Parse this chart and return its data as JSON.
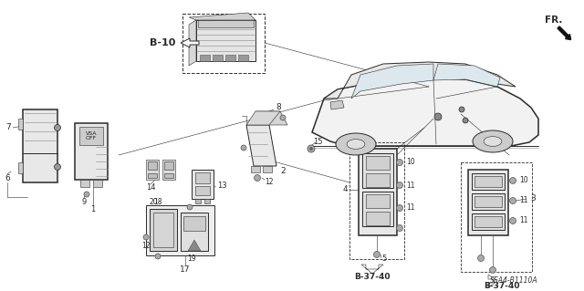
{
  "bg_color": "#ffffff",
  "lc": "#2a2a2a",
  "lc_light": "#888888",
  "fc_body": "#e8e8e8",
  "fc_dark": "#bbbbbb",
  "fc_mid": "#d5d5d5",
  "diagram_code": "SEA4–B1110A",
  "b10": "B-10",
  "b3740": "B-37-40",
  "fr": "FR.",
  "figsize": [
    6.4,
    3.19
  ],
  "dpi": 100
}
